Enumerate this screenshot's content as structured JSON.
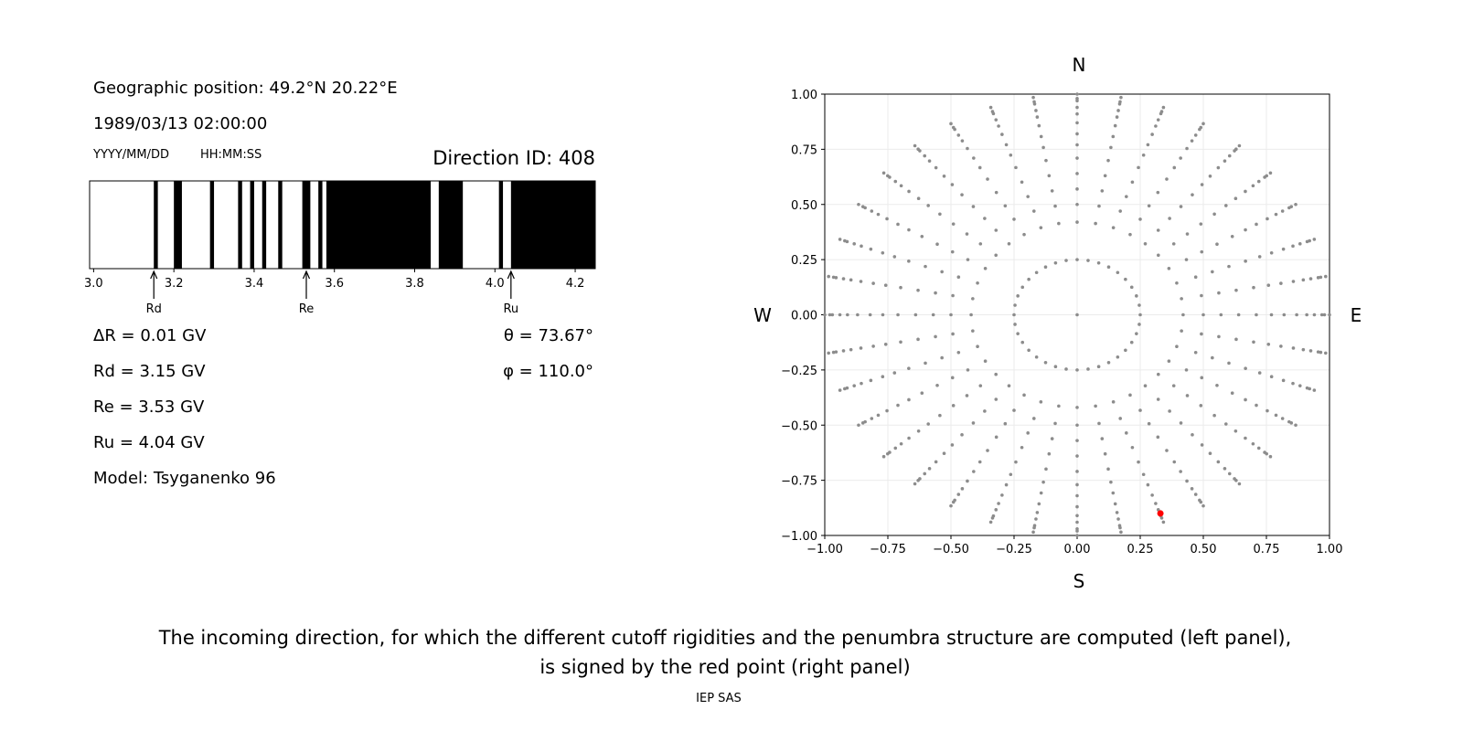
{
  "chart_data": [
    {
      "type": "penumbra",
      "position": "Geographic position: 49.2°N 20.22°E",
      "datetime": "1989/03/13 02:00:00",
      "date_format": "YYYY/MM/DD",
      "time_format": "HH:MM:SS",
      "direction": "Direction ID: 408",
      "xlim": [
        2.99,
        4.25
      ],
      "xticks": [
        {
          "value": 3,
          "label": "3.0"
        },
        3.2,
        3.4,
        3.6,
        3.8,
        {
          "value": 4,
          "label": "4.0"
        },
        4.2
      ],
      "color": "#000000",
      "bands": [
        [
          3.15,
          3.16
        ],
        [
          3.2,
          3.22
        ],
        [
          3.29,
          3.3
        ],
        [
          3.36,
          3.37
        ],
        [
          3.39,
          3.4
        ],
        [
          3.42,
          3.43
        ],
        [
          3.46,
          3.47
        ],
        [
          3.52,
          3.54
        ],
        [
          3.56,
          3.57
        ],
        [
          3.58,
          3.84
        ],
        [
          3.86,
          3.92
        ],
        [
          4.01,
          4.02
        ],
        [
          4.04,
          4.25
        ]
      ],
      "markers": [
        {
          "label": "Rd",
          "value": 3.15
        },
        {
          "label": "Re",
          "value": 3.53
        },
        {
          "label": "Ru",
          "value": 4.04
        }
      ],
      "stats": [
        "ΔR = 0.01 GV",
        "Rd = 3.15 GV",
        "Re = 3.53 GV",
        "Ru = 4.04 GV",
        "Model: Tsyganenko 96"
      ],
      "angles": [
        "θ = 73.67°",
        "φ = 110.0°"
      ]
    },
    {
      "type": "scatter",
      "compass": {
        "N": "N",
        "S": "S",
        "W": "W",
        "E": "E"
      },
      "xlim": [
        -1,
        1
      ],
      "ylim": [
        -1,
        1
      ],
      "xticks": [
        {
          "value": -1,
          "label": "−1.00"
        },
        {
          "value": -0.75,
          "label": "−0.75"
        },
        {
          "value": -0.5,
          "label": "−0.50"
        },
        {
          "value": -0.25,
          "label": "−0.25"
        },
        {
          "value": 0,
          "label": "0.00"
        },
        {
          "value": 0.25,
          "label": "0.25"
        },
        {
          "value": 0.5,
          "label": "0.50"
        },
        {
          "value": 0.75,
          "label": "0.75"
        },
        {
          "value": 1,
          "label": "1.00"
        }
      ],
      "yticks": [
        {
          "value": -1,
          "label": "−1.00"
        },
        {
          "value": -0.75,
          "label": "−0.75"
        },
        {
          "value": -0.5,
          "label": "−0.50"
        },
        {
          "value": -0.25,
          "label": "−0.25"
        },
        {
          "value": 0,
          "label": "0.00"
        },
        {
          "value": 0.25,
          "label": "0.25"
        },
        {
          "value": 0.5,
          "label": "0.50"
        },
        {
          "value": 0.75,
          "label": "0.75"
        },
        {
          "value": 1,
          "label": "1.00"
        }
      ],
      "grid": true,
      "color": "#8c8c8c",
      "azimuths": [
        0,
        10,
        20,
        30,
        40,
        50,
        60,
        70,
        80,
        90,
        100,
        110,
        120,
        130,
        140,
        150,
        160,
        170,
        180,
        190,
        200,
        210,
        220,
        230,
        240,
        250,
        260,
        270,
        280,
        290,
        300,
        310,
        320,
        330,
        340,
        350
      ],
      "radii": [
        0.25,
        0.42,
        0.5,
        0.57,
        0.64,
        0.71,
        0.77,
        0.82,
        0.87,
        0.91,
        0.94,
        0.97,
        0.98,
        1.0
      ],
      "center": {
        "x": [
          0
        ],
        "y": [
          0
        ]
      },
      "selected": {
        "x": [
          0.33
        ],
        "y": [
          -0.9
        ],
        "color": "#ff0000"
      }
    }
  ],
  "caption": [
    "The incoming direction, for which the different cutoff rigidities and the penumbra structure are computed (left panel),",
    "is signed by the red point (right panel)"
  ],
  "credit": "IEP SAS"
}
